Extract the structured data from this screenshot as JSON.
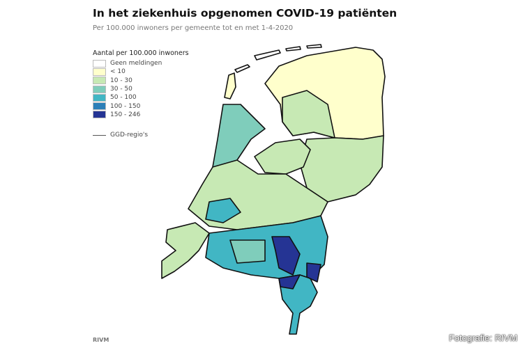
{
  "title": "In het ziekenhuis opgenomen COVID-19 patiënten",
  "subtitle": "Per 100.000 inwoners per gemeente tot en met 1-4-2020",
  "legend": {
    "title": "Aantal per 100.000 inwoners",
    "items": [
      {
        "label": "Geen meldingen",
        "color": "#ffffff"
      },
      {
        "label": "< 10",
        "color": "#ffffcc"
      },
      {
        "label": "10 - 30",
        "color": "#c7e9b4"
      },
      {
        "label": "30 - 50",
        "color": "#7fcdbb"
      },
      {
        "label": "50 - 100",
        "color": "#41b6c4"
      },
      {
        "label": "100 - 150",
        "color": "#2c7fb8"
      },
      {
        "label": "150 - 246",
        "color": "#253494"
      }
    ],
    "boundary_label": "GGD-regio's"
  },
  "source": "RIVM",
  "photo_credit": "Fotografie: RIVM"
}
